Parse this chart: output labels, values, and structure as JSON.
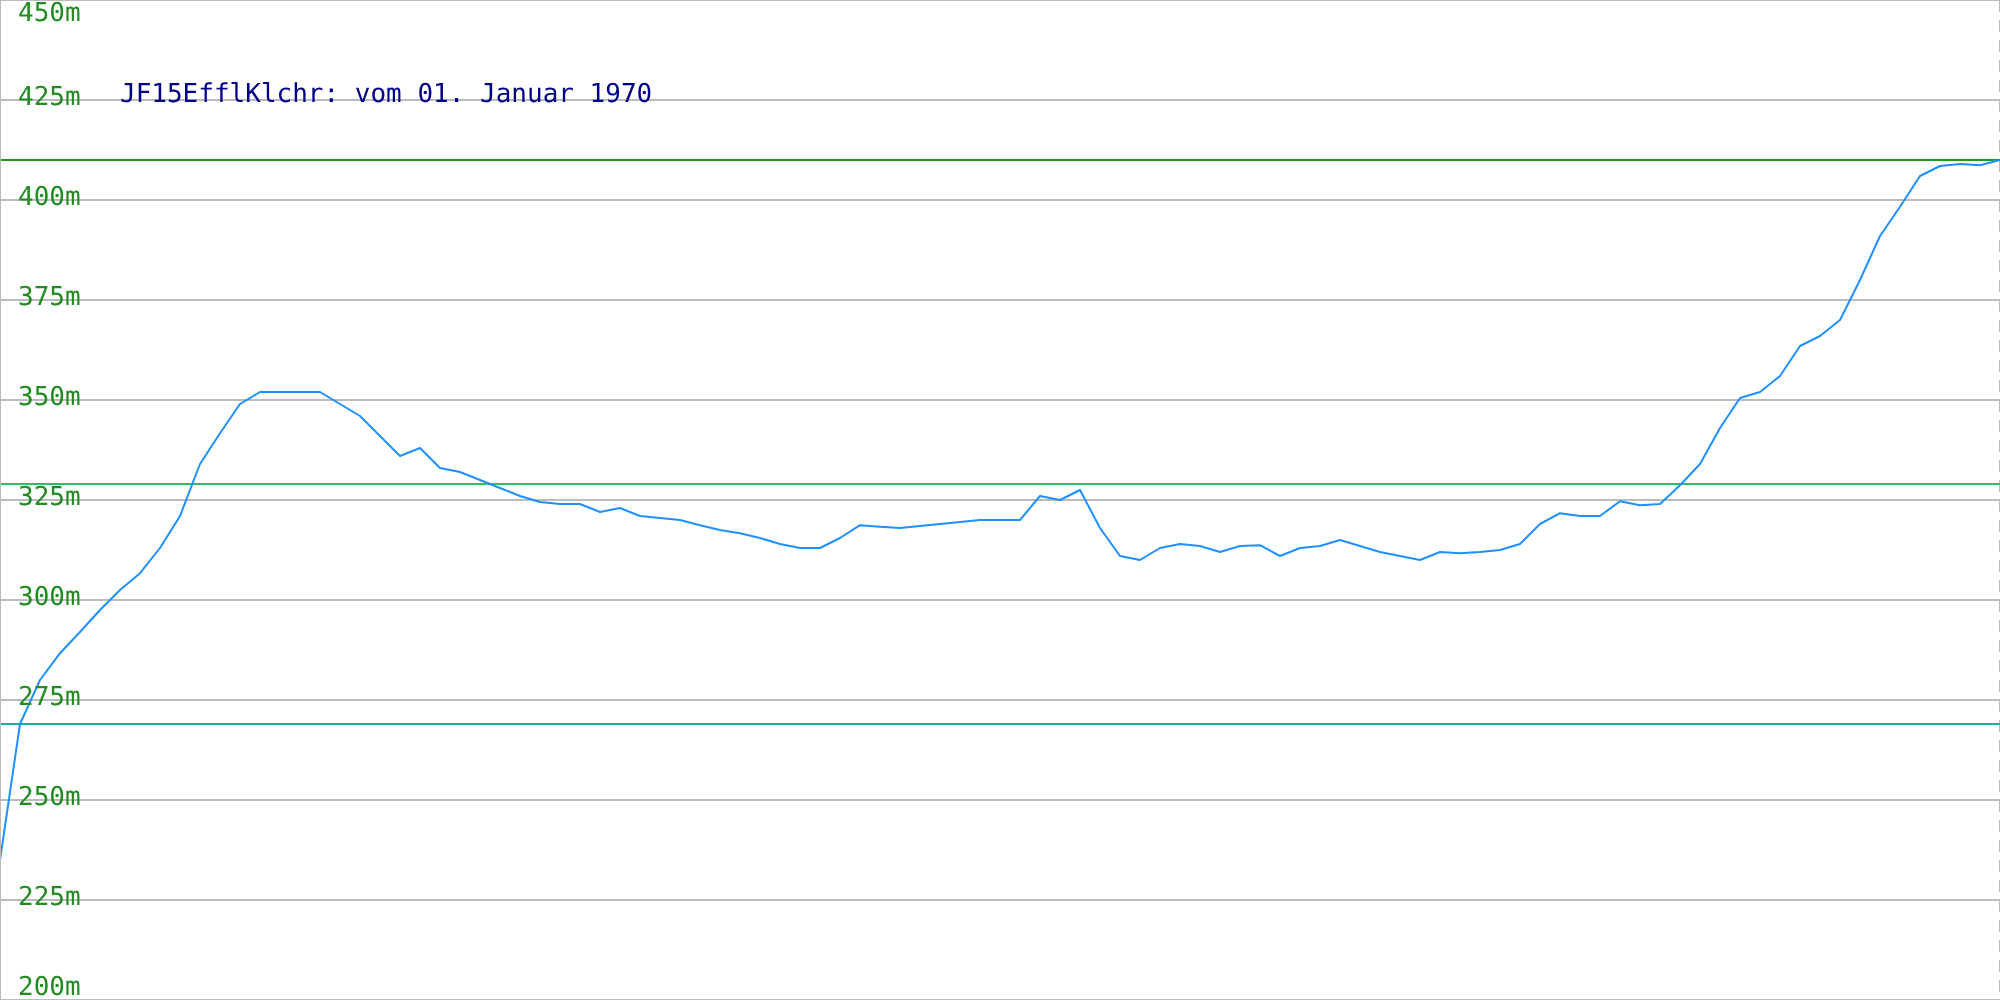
{
  "chart_data": {
    "type": "line",
    "title": "JF15EfflKlchr: vom 01. Januar 1970",
    "categories": [
      null,
      null,
      null,
      null,
      null,
      null,
      null,
      null,
      null,
      null,
      null,
      null,
      null,
      null,
      null,
      null,
      null,
      null,
      null,
      null,
      null,
      null,
      null,
      null,
      null,
      null,
      null,
      null,
      null,
      null,
      null,
      null,
      null,
      null,
      null,
      null,
      null,
      null,
      null,
      null,
      null,
      null,
      null,
      null,
      null,
      null,
      null,
      null,
      null,
      null,
      null,
      null,
      null,
      null,
      null,
      null,
      null,
      null,
      null,
      null,
      null,
      null,
      null,
      null,
      null,
      null,
      null,
      null,
      null,
      null,
      null,
      null,
      null,
      null,
      null,
      null,
      null,
      null,
      null,
      null,
      null,
      null,
      null,
      null,
      null,
      null,
      null,
      null,
      null,
      null,
      null,
      null,
      null,
      null,
      null,
      null,
      null,
      null,
      null,
      null,
      null
    ],
    "series": [
      {
        "color": "#1e90ff",
        "values": [
          235,
          269,
          280,
          286.7,
          292,
          297.5,
          302.5,
          306.7,
          313,
          321,
          334,
          341.7,
          349,
          352,
          352,
          352,
          352,
          349,
          346,
          341,
          336,
          338,
          333,
          332,
          330,
          328,
          326,
          324.5,
          324,
          324,
          322,
          323,
          321,
          320.5,
          320,
          318.7,
          317.5,
          316.7,
          315.5,
          314,
          313,
          313,
          315.5,
          318.7,
          318.3,
          318,
          318.5,
          319,
          319.5,
          320,
          320,
          320,
          326,
          325,
          327.5,
          318,
          311,
          310,
          313,
          314,
          313.5,
          312,
          313.5,
          313.7,
          311,
          313,
          313.5,
          315,
          313.5,
          312,
          311,
          310,
          312,
          311.7,
          312,
          312.5,
          314,
          319,
          321.7,
          321,
          321,
          324.7,
          323.7,
          324,
          328.7,
          334,
          343,
          350.5,
          352,
          356,
          363.5,
          366,
          370,
          380,
          391,
          398.3,
          406,
          408.5,
          409,
          408.7,
          410
        ]
      }
    ],
    "ylim": [
      200,
      450
    ],
    "yticks": [
      {
        "value": 200,
        "label": "200m"
      },
      {
        "value": 225,
        "label": "225m"
      },
      {
        "value": 250,
        "label": "250m"
      },
      {
        "value": 275,
        "label": "275m"
      },
      {
        "value": 300,
        "label": "300m"
      },
      {
        "value": 325,
        "label": "325m"
      },
      {
        "value": 350,
        "label": "350m"
      },
      {
        "value": 375,
        "label": "375m"
      },
      {
        "value": 400,
        "label": "400m"
      },
      {
        "value": 425,
        "label": "425m"
      },
      {
        "value": 450,
        "label": "450m"
      }
    ],
    "grid": true,
    "ref_lines": [
      {
        "axis": "y",
        "value": 410,
        "color": "#229922"
      },
      {
        "axis": "y",
        "value": 329,
        "color": "#33bb66"
      },
      {
        "axis": "y",
        "value": 269,
        "color": "#22aaaa"
      }
    ]
  }
}
